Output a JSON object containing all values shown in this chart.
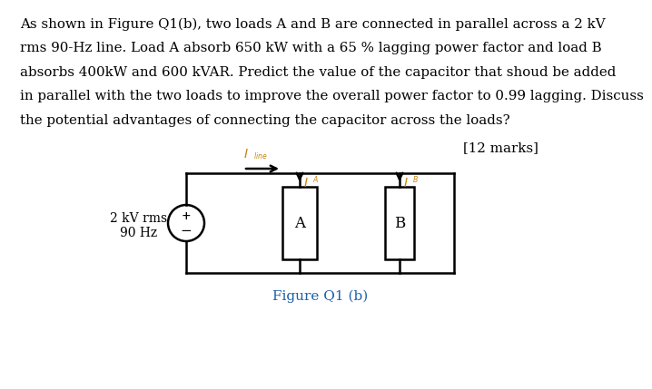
{
  "paragraph_lines": [
    "As shown in Figure Q1(b), two loads A and B are connected in parallel across a 2 kV",
    "rms 90-Hz line. Load A absorb 650 kW with a 65 % lagging power factor and load B",
    "absorbs 400kW and 600 kVAR. Predict the value of the capacitor that shoud be added",
    "in parallel with the two loads to improve the overall power factor to 0.99 lagging. Discuss",
    "the potential advantages of connecting the capacitor across the loads?"
  ],
  "marks_text": "[12 marks]",
  "figure_caption": "Figure Q1 (b)",
  "source_label_1": "2 kV rms",
  "source_label_2": "90 Hz",
  "load_a_label": "A",
  "load_b_label": "B",
  "bg_color": "#ffffff",
  "text_color": "#000000",
  "orange_color": "#c8820a",
  "line_color": "#000000",
  "caption_color": "#1a5fa8",
  "font_size_body": 10.8,
  "font_size_labels": 10,
  "font_size_caption": 11,
  "font_size_circuit_label": 12
}
